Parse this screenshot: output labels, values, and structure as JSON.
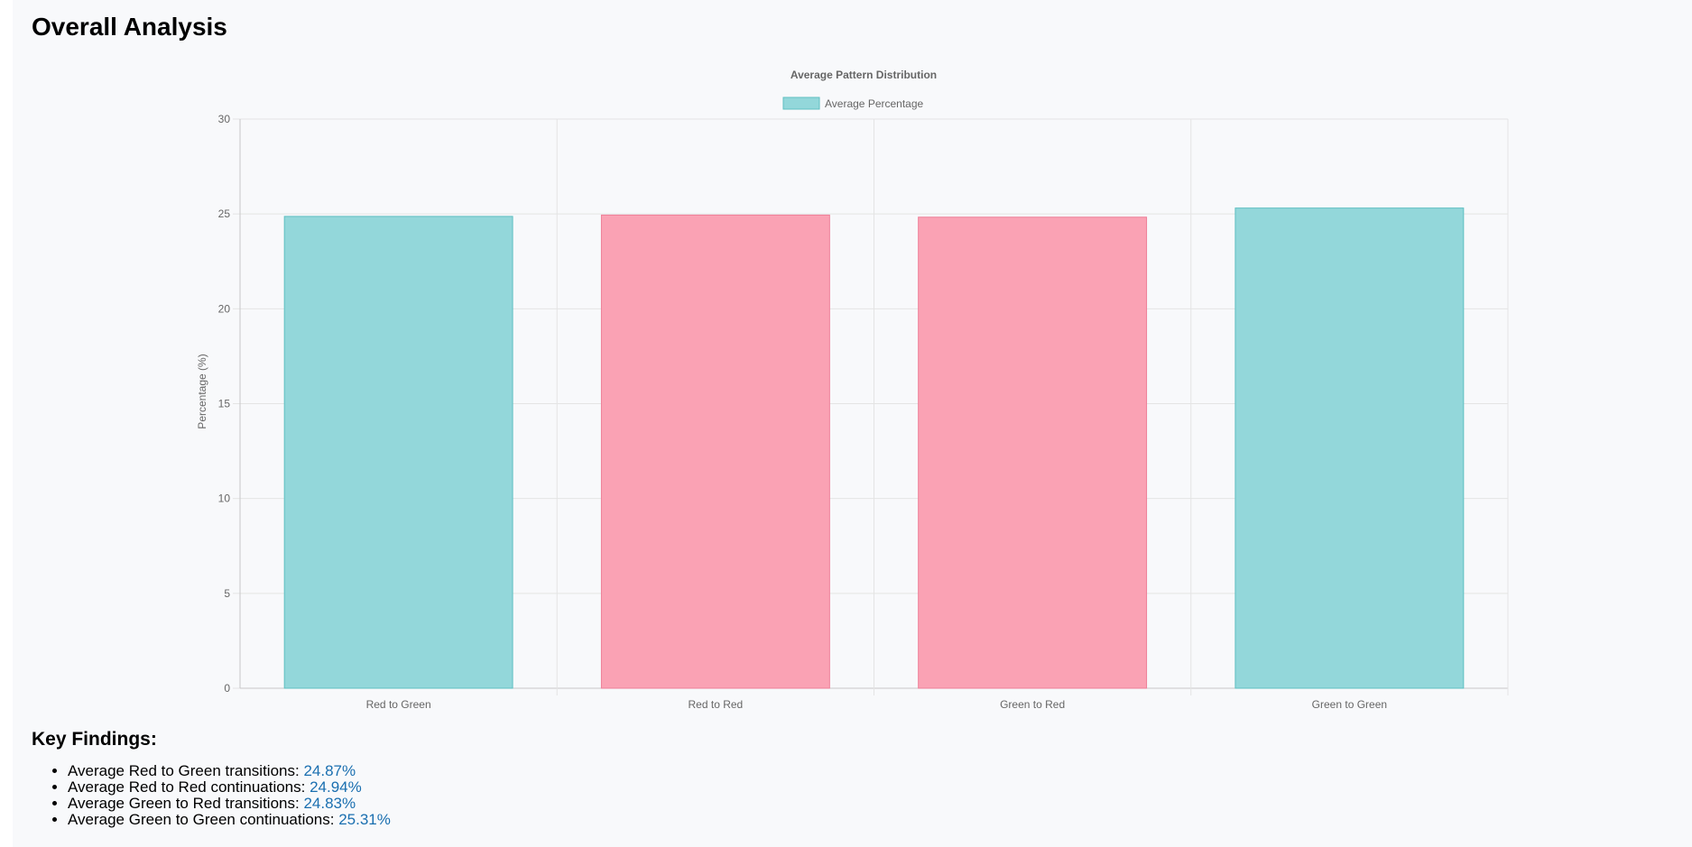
{
  "page": {
    "title": "Overall Analysis"
  },
  "chart_data": {
    "type": "bar",
    "title": "Average Pattern Distribution",
    "xlabel": "",
    "ylabel": "Percentage (%)",
    "ylim": [
      0,
      30
    ],
    "yticks": [
      0,
      5,
      10,
      15,
      20,
      25,
      30
    ],
    "categories": [
      "Red to Green",
      "Red to Red",
      "Green to Red",
      "Green to Green"
    ],
    "series": [
      {
        "name": "Average Percentage",
        "values": [
          24.87,
          24.94,
          24.83,
          25.31
        ]
      }
    ],
    "bar_colors": [
      "#93d7da",
      "#faa2b4",
      "#faa2b4",
      "#93d7da"
    ],
    "bar_border_colors": [
      "#5fbfc2",
      "#ee7f98",
      "#ee7f98",
      "#5fbfc2"
    ],
    "legend": {
      "position": "top",
      "swatch_color": "#93d7da"
    },
    "grid": true
  },
  "findings": {
    "title": "Key Findings:",
    "items": [
      {
        "label": "Average Red to Green transitions: ",
        "value": "24.87%"
      },
      {
        "label": "Average Red to Red continuations: ",
        "value": "24.94%"
      },
      {
        "label": "Average Green to Red transitions: ",
        "value": "24.83%"
      },
      {
        "label": "Average Green to Green continuations: ",
        "value": "25.31%"
      }
    ]
  }
}
